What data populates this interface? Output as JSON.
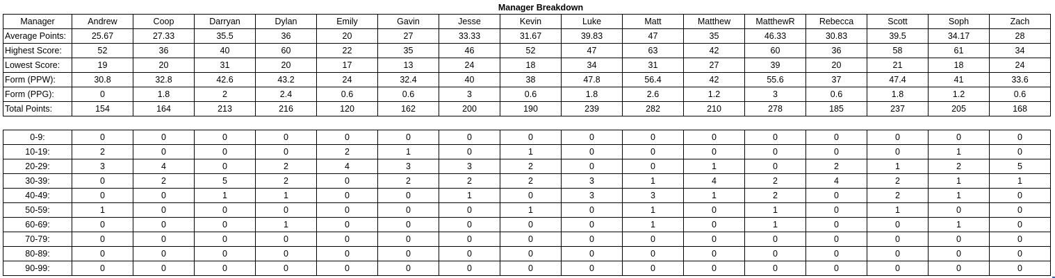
{
  "title": "Manager Breakdown",
  "header_label": "Manager",
  "managers": [
    "Andrew",
    "Coop",
    "Darryan",
    "Dylan",
    "Emily",
    "Gavin",
    "Jesse",
    "Kevin",
    "Luke",
    "Matt",
    "Matthew",
    "MatthewR",
    "Rebecca",
    "Scott",
    "Soph",
    "Zach"
  ],
  "stats": [
    {
      "label": "Average Points:",
      "values": [
        "25.67",
        "27.33",
        "35.5",
        "36",
        "20",
        "27",
        "33.33",
        "31.67",
        "39.83",
        "47",
        "35",
        "46.33",
        "30.83",
        "39.5",
        "34.17",
        "28"
      ]
    },
    {
      "label": "Highest Score:",
      "values": [
        "52",
        "36",
        "40",
        "60",
        "22",
        "35",
        "46",
        "52",
        "47",
        "63",
        "42",
        "60",
        "36",
        "58",
        "61",
        "34"
      ]
    },
    {
      "label": "Lowest Score:",
      "values": [
        "19",
        "20",
        "31",
        "20",
        "17",
        "13",
        "24",
        "18",
        "34",
        "31",
        "27",
        "39",
        "20",
        "21",
        "18",
        "24"
      ]
    },
    {
      "label": "Form (PPW):",
      "values": [
        "30.8",
        "32.8",
        "42.6",
        "43.2",
        "24",
        "32.4",
        "40",
        "38",
        "47.8",
        "56.4",
        "42",
        "55.6",
        "37",
        "47.4",
        "41",
        "33.6"
      ]
    },
    {
      "label": "Form (PPG):",
      "values": [
        "0",
        "1.8",
        "2",
        "2.4",
        "0.6",
        "0.6",
        "3",
        "0.6",
        "1.8",
        "2.6",
        "1.2",
        "3",
        "0.6",
        "1.8",
        "1.2",
        "0.6"
      ]
    },
    {
      "label": "Total Points:",
      "values": [
        "154",
        "164",
        "213",
        "216",
        "120",
        "162",
        "200",
        "190",
        "239",
        "282",
        "210",
        "278",
        "185",
        "237",
        "205",
        "168"
      ]
    }
  ],
  "bins": [
    {
      "label": "0-9:",
      "values": [
        "0",
        "0",
        "0",
        "0",
        "0",
        "0",
        "0",
        "0",
        "0",
        "0",
        "0",
        "0",
        "0",
        "0",
        "0",
        "0"
      ]
    },
    {
      "label": "10-19:",
      "values": [
        "2",
        "0",
        "0",
        "0",
        "2",
        "1",
        "0",
        "1",
        "0",
        "0",
        "0",
        "0",
        "0",
        "0",
        "1",
        "0"
      ]
    },
    {
      "label": "20-29:",
      "values": [
        "3",
        "4",
        "0",
        "2",
        "4",
        "3",
        "3",
        "2",
        "0",
        "0",
        "1",
        "0",
        "2",
        "1",
        "2",
        "5"
      ]
    },
    {
      "label": "30-39:",
      "values": [
        "0",
        "2",
        "5",
        "2",
        "0",
        "2",
        "2",
        "2",
        "3",
        "1",
        "4",
        "2",
        "4",
        "2",
        "1",
        "1"
      ]
    },
    {
      "label": "40-49:",
      "values": [
        "0",
        "0",
        "1",
        "1",
        "0",
        "0",
        "1",
        "0",
        "3",
        "3",
        "1",
        "2",
        "0",
        "2",
        "1",
        "0"
      ]
    },
    {
      "label": "50-59:",
      "values": [
        "1",
        "0",
        "0",
        "0",
        "0",
        "0",
        "0",
        "1",
        "0",
        "1",
        "0",
        "1",
        "0",
        "1",
        "0",
        "0"
      ]
    },
    {
      "label": "60-69:",
      "values": [
        "0",
        "0",
        "0",
        "1",
        "0",
        "0",
        "0",
        "0",
        "0",
        "1",
        "0",
        "1",
        "0",
        "0",
        "1",
        "0"
      ]
    },
    {
      "label": "70-79:",
      "values": [
        "0",
        "0",
        "0",
        "0",
        "0",
        "0",
        "0",
        "0",
        "0",
        "0",
        "0",
        "0",
        "0",
        "0",
        "0",
        "0"
      ]
    },
    {
      "label": "80-89:",
      "values": [
        "0",
        "0",
        "0",
        "0",
        "0",
        "0",
        "0",
        "0",
        "0",
        "0",
        "0",
        "0",
        "0",
        "0",
        "0",
        "0"
      ]
    },
    {
      "label": "90-99:",
      "values": [
        "0",
        "0",
        "0",
        "0",
        "0",
        "0",
        "0",
        "0",
        "0",
        "0",
        "0",
        "0",
        "0",
        "0",
        "0",
        "0"
      ]
    }
  ]
}
